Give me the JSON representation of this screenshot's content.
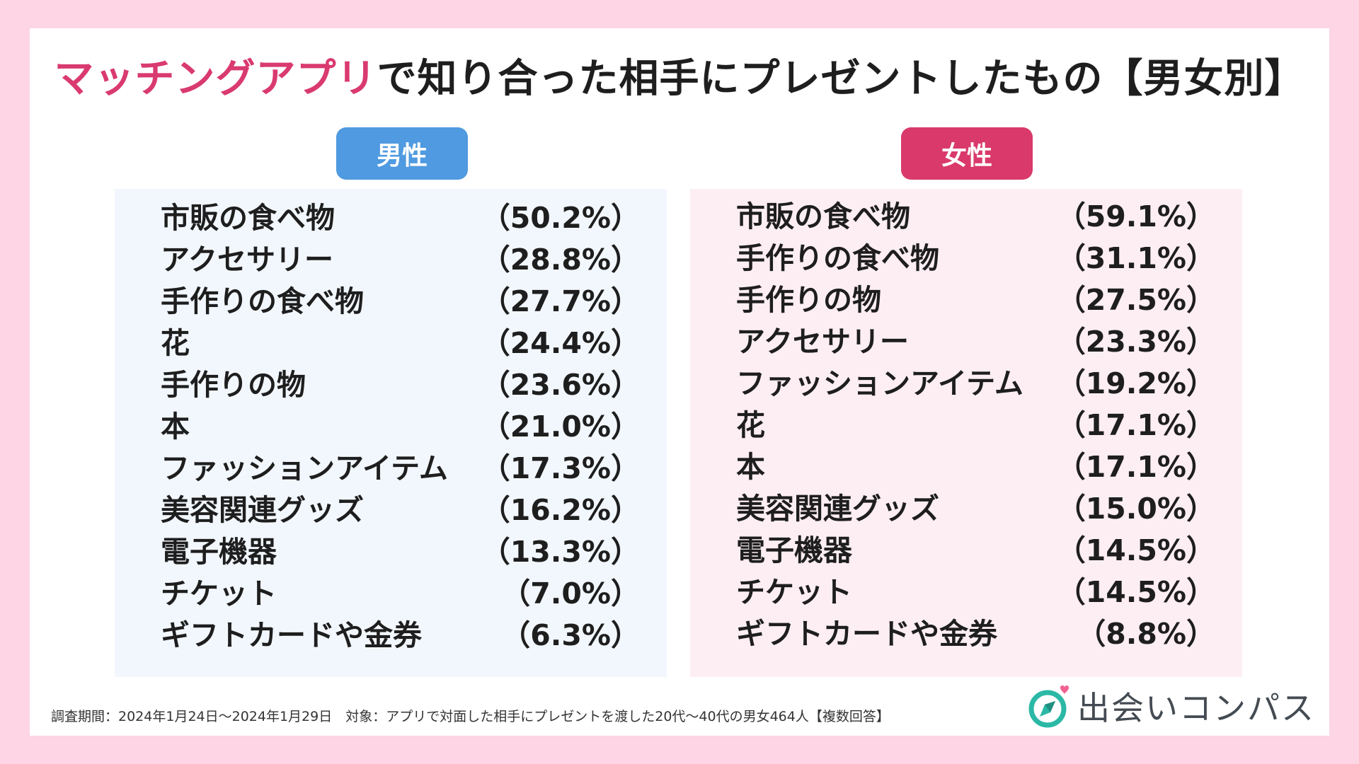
{
  "title": {
    "highlight": "マッチングアプリ",
    "rest": "で知り合った相手にプレゼントしたもの【男女別】"
  },
  "colors": {
    "accent_pink": "#d93a70",
    "male_blue": "#4f9ae0",
    "female_pink": "#d93a6b",
    "background": "#fdd5e4"
  },
  "chart_data": [
    {
      "type": "table",
      "title": "男性",
      "categories": [
        "市販の食べ物",
        "アクセサリー",
        "手作りの食べ物",
        "花",
        "手作りの物",
        "本",
        "ファッションアイテム",
        "美容関連グッズ",
        "電子機器",
        "チケット",
        "ギフトカードや金券"
      ],
      "values": [
        50.2,
        28.8,
        27.7,
        24.4,
        23.6,
        21.0,
        17.3,
        16.2,
        13.3,
        7.0,
        6.3
      ],
      "labels": [
        "（50.2%）",
        "（28.8%）",
        "（27.7%）",
        "（24.4%）",
        "（23.6%）",
        "（21.0%）",
        "（17.3%）",
        "（16.2%）",
        "（13.3%）",
        "（7.0%）",
        "（6.3%）"
      ]
    },
    {
      "type": "table",
      "title": "女性",
      "categories": [
        "市販の食べ物",
        "手作りの食べ物",
        "手作りの物",
        "アクセサリー",
        "ファッションアイテム",
        "花",
        "本",
        "美容関連グッズ",
        "電子機器",
        "チケット",
        "ギフトカードや金券"
      ],
      "values": [
        59.1,
        31.1,
        27.5,
        23.3,
        19.2,
        17.1,
        17.1,
        15.0,
        14.5,
        14.5,
        8.8
      ],
      "labels": [
        "（59.1%）",
        "（31.1%）",
        "（27.5%）",
        "（23.3%）",
        "（19.2%）",
        "（17.1%）",
        "（17.1%）",
        "（15.0%）",
        "（14.5%）",
        "（14.5%）",
        "（8.8%）"
      ]
    }
  ],
  "footnote": "調査期間：2024年1月24日〜2024年1月29日　対象：アプリで対面した相手にプレゼントを渡した20代〜40代の男女464人【複数回答】",
  "logo": {
    "text": "出会いコンパス",
    "icon": "compass-heart-icon"
  }
}
